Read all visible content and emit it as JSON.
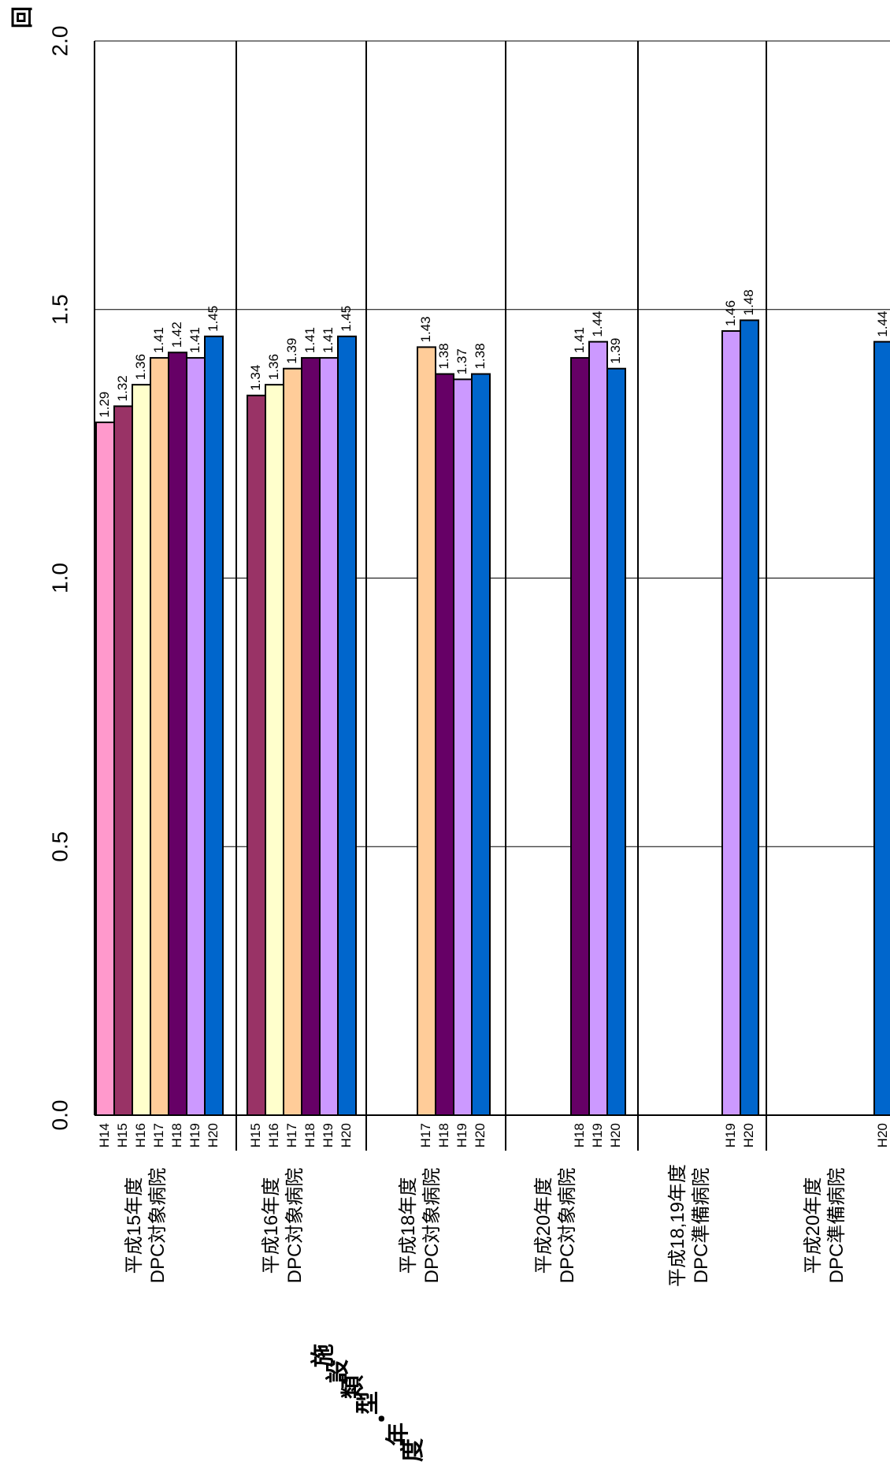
{
  "chart_data": {
    "type": "bar",
    "orientation": "rotated-90",
    "ylabel": "回",
    "xlabel": "施設類型・年度",
    "ylim": [
      0,
      2.0
    ],
    "yticks": [
      "0.0",
      "0.5",
      "1.0",
      "1.5",
      "2.0"
    ],
    "grid": true,
    "year_colors": {
      "H14": "#ff99cc",
      "H15": "#993366",
      "H16": "#ffffcc",
      "H17": "#ffcc99",
      "H18": "#660066",
      "H19": "#cc99ff",
      "H20": "#0066cc"
    },
    "groups": [
      {
        "label_lines": [
          "平成15年度",
          "DPC対象病院"
        ],
        "bars": [
          {
            "year": "H14",
            "value": 1.29,
            "label": "1.29"
          },
          {
            "year": "H15",
            "value": 1.32,
            "label": "1.32"
          },
          {
            "year": "H16",
            "value": 1.36,
            "label": "1.36"
          },
          {
            "year": "H17",
            "value": 1.41,
            "label": "1.41"
          },
          {
            "year": "H18",
            "value": 1.42,
            "label": "1.42"
          },
          {
            "year": "H19",
            "value": 1.41,
            "label": "1.41"
          },
          {
            "year": "H20",
            "value": 1.45,
            "label": "1.45"
          }
        ]
      },
      {
        "label_lines": [
          "平成16年度",
          "DPC対象病院"
        ],
        "bars": [
          {
            "year": "H15",
            "value": 1.34,
            "label": "1.34"
          },
          {
            "year": "H16",
            "value": 1.36,
            "label": "1.36"
          },
          {
            "year": "H17",
            "value": 1.39,
            "label": "1.39"
          },
          {
            "year": "H18",
            "value": 1.41,
            "label": "1.41"
          },
          {
            "year": "H19",
            "value": 1.41,
            "label": "1.41"
          },
          {
            "year": "H20",
            "value": 1.45,
            "label": "1.45"
          }
        ]
      },
      {
        "label_lines": [
          "平成18年度",
          "DPC対象病院"
        ],
        "bars": [
          {
            "year": "H17",
            "value": 1.43,
            "label": "1.43"
          },
          {
            "year": "H18",
            "value": 1.38,
            "label": "1.38"
          },
          {
            "year": "H19",
            "value": 1.37,
            "label": "1.37"
          },
          {
            "year": "H20",
            "value": 1.38,
            "label": "1.38"
          }
        ]
      },
      {
        "label_lines": [
          "平成20年度",
          "DPC対象病院"
        ],
        "bars": [
          {
            "year": "H18",
            "value": 1.41,
            "label": "1.41"
          },
          {
            "year": "H19",
            "value": 1.44,
            "label": "1.44"
          },
          {
            "year": "H20",
            "value": 1.39,
            "label": "1.39"
          }
        ]
      },
      {
        "label_lines": [
          "平成18,19年度",
          "DPC準備病院"
        ],
        "bars": [
          {
            "year": "H19",
            "value": 1.46,
            "label": "1.46"
          },
          {
            "year": "H20",
            "value": 1.48,
            "label": "1.48"
          }
        ]
      },
      {
        "label_lines": [
          "平成20年度",
          "DPC準備病院"
        ],
        "bars": [
          {
            "year": "H20",
            "value": 1.44,
            "label": "1.44"
          }
        ]
      }
    ]
  }
}
